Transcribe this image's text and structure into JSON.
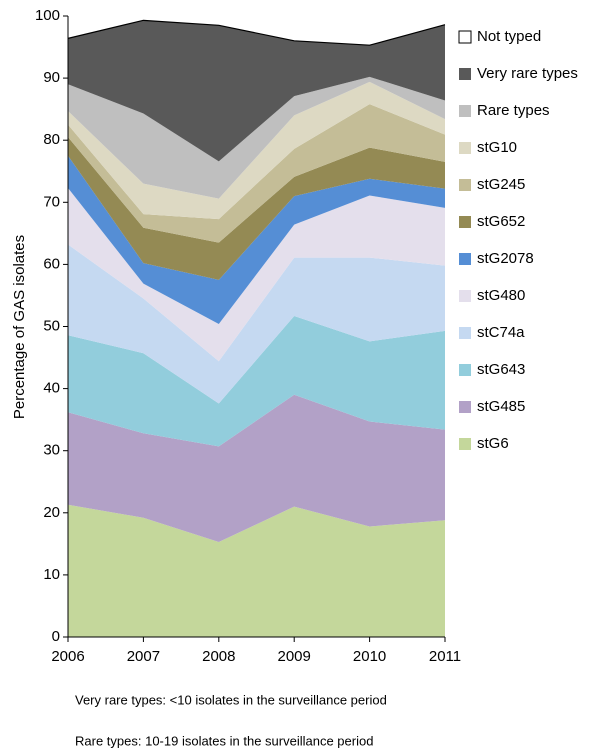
{
  "chart_data": {
    "type": "stacked_area",
    "y_label": "Percentage of GAS isolates",
    "x": [
      2006,
      2007,
      2008,
      2009,
      2010,
      2011
    ],
    "xlim": [
      2006,
      2011
    ],
    "xticks": [
      2006,
      2007,
      2008,
      2009,
      2010,
      2011
    ],
    "ylim": [
      0,
      100
    ],
    "yticks": [
      0,
      10,
      20,
      30,
      40,
      50,
      60,
      70,
      80,
      90,
      100
    ],
    "series": [
      {
        "name": "stG6",
        "color": "#c4d79b",
        "values": [
          21.3,
          19.2,
          15.3,
          21.0,
          17.8,
          18.8
        ]
      },
      {
        "name": "stG485",
        "color": "#b2a1c7",
        "values": [
          14.9,
          13.6,
          15.4,
          18.0,
          16.9,
          14.6
        ]
      },
      {
        "name": "stG643",
        "color": "#92cddc",
        "values": [
          12.4,
          12.9,
          6.9,
          12.7,
          12.9,
          15.9
        ]
      },
      {
        "name": "stC74a",
        "color": "#c5d9f1",
        "values": [
          14.6,
          8.8,
          6.8,
          9.4,
          13.5,
          10.5
        ]
      },
      {
        "name": "stG480",
        "color": "#e4dfec",
        "values": [
          9.1,
          2.4,
          6.0,
          5.3,
          10.0,
          9.3
        ]
      },
      {
        "name": "stG2078",
        "color": "#558ed5",
        "values": [
          5.2,
          3.3,
          7.1,
          4.6,
          2.7,
          3.1
        ]
      },
      {
        "name": "stG652",
        "color": "#948a54",
        "values": [
          3.0,
          5.7,
          6.0,
          3.1,
          5.0,
          4.3
        ]
      },
      {
        "name": "stG245",
        "color": "#c4bd97",
        "values": [
          2.0,
          2.2,
          3.8,
          4.5,
          7.0,
          4.4
        ]
      },
      {
        "name": "stG10",
        "color": "#ddd9c3",
        "values": [
          2.2,
          4.9,
          3.3,
          5.4,
          3.6,
          2.5
        ]
      },
      {
        "name": "Rare types",
        "color": "#bfbfbf",
        "values": [
          4.3,
          11.3,
          6.0,
          3.1,
          0.8,
          3.0
        ]
      },
      {
        "name": "Very rare types",
        "color": "#595959",
        "values": [
          7.4,
          15.0,
          21.9,
          8.9,
          5.1,
          12.2
        ]
      },
      {
        "name": "Not typed",
        "color": "#ffffff",
        "values": [
          3.6,
          0.7,
          1.5,
          4.0,
          4.7,
          1.4
        ]
      }
    ],
    "legend": "right",
    "notes": [
      "Very rare types: <10 isolates in the surveillance period",
      "Rare types: 10-19 isolates in the surveillance period"
    ]
  }
}
